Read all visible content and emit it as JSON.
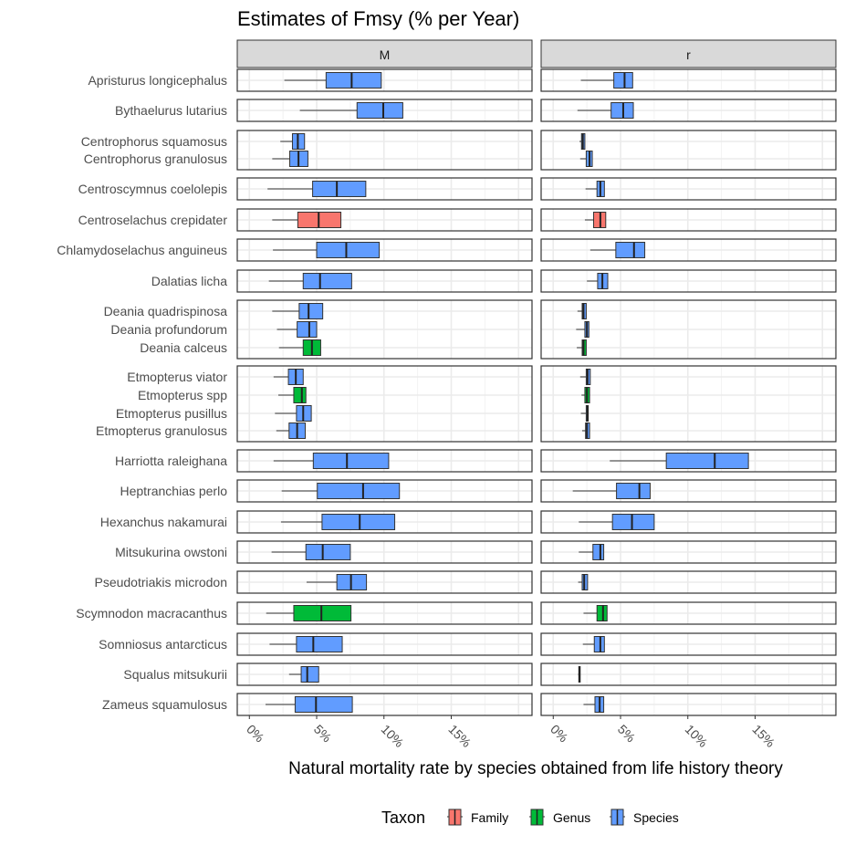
{
  "chart_data": {
    "type": "boxplot",
    "title": "Estimates of Fmsy (% per Year)",
    "xlabel": "Natural mortality rate by species obtained from life history theory",
    "ylabel": "",
    "facets": [
      "M",
      "r"
    ],
    "xlim": [
      -0.9,
      21
    ],
    "x_ticks": [
      0,
      5,
      10,
      15
    ],
    "x_tick_labels": [
      "0%",
      "5%",
      "10%",
      "15%"
    ],
    "grid": true,
    "legend": {
      "title": "Taxon",
      "position": "bottom",
      "entries": [
        "Family",
        "Genus",
        "Species"
      ]
    },
    "colors": {
      "Family": "#F8766D",
      "Genus": "#00BA38",
      "Species": "#619CFF"
    },
    "value_fields": [
      "lower_whisker",
      "q1",
      "median",
      "q3"
    ],
    "rows": [
      {
        "name": "Apristurus longicephalus",
        "group": 1,
        "taxon": "Species",
        "M": [
          2.6,
          5.7,
          7.6,
          9.8
        ],
        "r": [
          2.05,
          4.5,
          5.3,
          5.9
        ]
      },
      {
        "name": "Bythaelurus lutarius",
        "group": 2,
        "taxon": "Species",
        "M": [
          3.75,
          8.0,
          9.95,
          11.4
        ],
        "r": [
          1.8,
          4.3,
          5.2,
          5.95
        ]
      },
      {
        "name": "Centrophorus squamosus",
        "group": 3,
        "taxon": "Species",
        "M": [
          2.3,
          3.2,
          3.6,
          4.1
        ],
        "r": [
          1.95,
          2.1,
          2.2,
          2.35
        ]
      },
      {
        "name": "Centrophorus granulosus",
        "group": 3,
        "taxon": "Species",
        "M": [
          1.7,
          3.0,
          3.65,
          4.35
        ],
        "r": [
          2.0,
          2.45,
          2.7,
          2.9
        ]
      },
      {
        "name": "Centroscymnus coelolepis",
        "group": 4,
        "taxon": "Species",
        "M": [
          1.35,
          4.7,
          6.5,
          8.65
        ],
        "r": [
          2.4,
          3.25,
          3.5,
          3.8
        ]
      },
      {
        "name": "Centroselachus crepidater",
        "group": 5,
        "taxon": "Family",
        "M": [
          1.7,
          3.6,
          5.15,
          6.8
        ],
        "r": [
          2.35,
          3.0,
          3.5,
          3.9
        ]
      },
      {
        "name": "Chlamydoselachus anguineus",
        "group": 6,
        "taxon": "Species",
        "M": [
          1.75,
          5.0,
          7.2,
          9.65
        ],
        "r": [
          2.75,
          4.65,
          6.0,
          6.8
        ]
      },
      {
        "name": "Dalatias licha",
        "group": 7,
        "taxon": "Species",
        "M": [
          1.45,
          4.0,
          5.25,
          7.6
        ],
        "r": [
          2.5,
          3.3,
          3.65,
          4.05
        ]
      },
      {
        "name": "Deania quadrispinosa",
        "group": 8,
        "taxon": "Species",
        "M": [
          1.7,
          3.7,
          4.4,
          5.45
        ],
        "r": [
          1.8,
          2.15,
          2.25,
          2.45
        ]
      },
      {
        "name": "Deania profundorum",
        "group": 8,
        "taxon": "Species",
        "M": [
          2.05,
          3.55,
          4.45,
          5.0
        ],
        "r": [
          1.7,
          2.35,
          2.5,
          2.65
        ]
      },
      {
        "name": "Deania calceus",
        "group": 8,
        "taxon": "Genus",
        "M": [
          2.2,
          4.0,
          4.65,
          5.3
        ],
        "r": [
          1.75,
          2.15,
          2.25,
          2.45
        ]
      },
      {
        "name": "Etmopterus viator",
        "group": 9,
        "taxon": "Species",
        "M": [
          1.8,
          2.9,
          3.45,
          4.0
        ],
        "r": [
          2.0,
          2.45,
          2.55,
          2.75
        ]
      },
      {
        "name": "Etmopterus spp",
        "group": 9,
        "taxon": "Genus",
        "M": [
          2.15,
          3.3,
          3.9,
          4.2
        ],
        "r": [
          2.1,
          2.35,
          2.5,
          2.7
        ]
      },
      {
        "name": "Etmopterus pusillus",
        "group": 9,
        "taxon": "Species",
        "M": [
          1.9,
          3.5,
          4.0,
          4.6
        ],
        "r": [
          2.05,
          2.45,
          2.55,
          2.6
        ]
      },
      {
        "name": "Etmopterus granulosus",
        "group": 9,
        "taxon": "Species",
        "M": [
          2.0,
          2.95,
          3.55,
          4.15
        ],
        "r": [
          2.15,
          2.4,
          2.5,
          2.7
        ]
      },
      {
        "name": "Harriotta raleighana",
        "group": 10,
        "taxon": "Species",
        "M": [
          1.8,
          4.75,
          7.25,
          10.35
        ],
        "r": [
          4.2,
          8.4,
          12.0,
          14.5
        ]
      },
      {
        "name": "Heptranchias perlo",
        "group": 11,
        "taxon": "Species",
        "M": [
          2.4,
          5.05,
          8.45,
          11.15
        ],
        "r": [
          1.45,
          4.7,
          6.4,
          7.2
        ]
      },
      {
        "name": "Hexanchus nakamurai",
        "group": 12,
        "taxon": "Species",
        "M": [
          2.35,
          5.4,
          8.2,
          10.8
        ],
        "r": [
          1.9,
          4.4,
          5.85,
          7.5
        ]
      },
      {
        "name": "Mitsukurina owstoni",
        "group": 13,
        "taxon": "Species",
        "M": [
          1.65,
          4.2,
          5.45,
          7.5
        ],
        "r": [
          1.9,
          2.95,
          3.5,
          3.75
        ]
      },
      {
        "name": "Pseudotriakis microdon",
        "group": 14,
        "taxon": "Species",
        "M": [
          4.25,
          6.5,
          7.55,
          8.7
        ],
        "r": [
          1.85,
          2.15,
          2.3,
          2.55
        ]
      },
      {
        "name": "Scymnodon macracanthus",
        "group": 15,
        "taxon": "Genus",
        "M": [
          1.25,
          3.3,
          5.35,
          7.55
        ],
        "r": [
          2.25,
          3.25,
          3.7,
          4.0
        ]
      },
      {
        "name": "Somniosus antarcticus",
        "group": 16,
        "taxon": "Species",
        "M": [
          1.5,
          3.5,
          4.75,
          6.9
        ],
        "r": [
          2.2,
          3.05,
          3.5,
          3.8
        ]
      },
      {
        "name": "Squalus mitsukurii",
        "group": 17,
        "taxon": "Species",
        "M": [
          2.95,
          3.85,
          4.3,
          5.15
        ],
        "r": [
          1.85,
          1.9,
          1.95,
          2.0
        ]
      },
      {
        "name": "Zameus squamulosus",
        "group": 18,
        "taxon": "Species",
        "M": [
          1.2,
          3.4,
          4.95,
          7.65
        ],
        "r": [
          2.25,
          3.1,
          3.45,
          3.75
        ]
      }
    ]
  }
}
